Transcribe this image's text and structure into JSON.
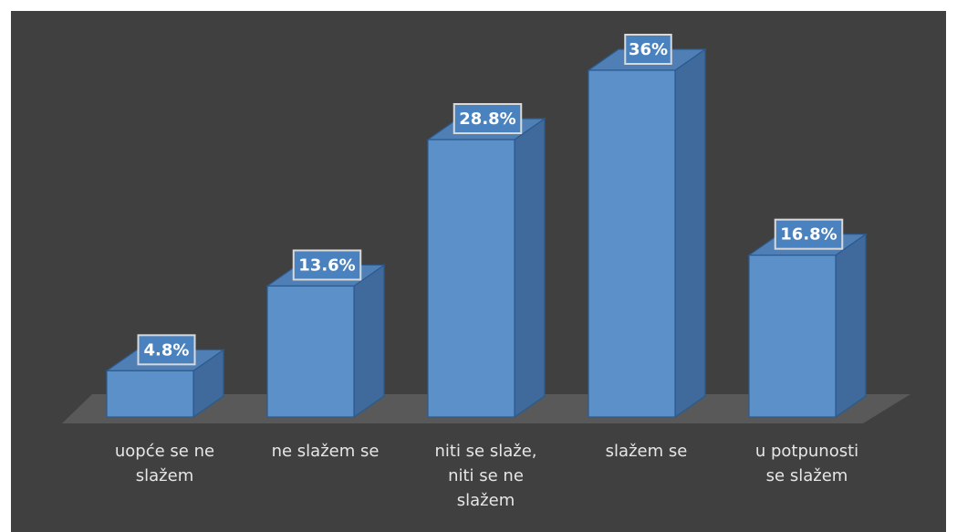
{
  "chart_data": {
    "type": "bar",
    "style": "3d-column",
    "categories": [
      [
        "uopće se ne",
        "slažem"
      ],
      [
        "ne slažem se"
      ],
      [
        "niti se slaže,",
        "niti se ne",
        "slažem"
      ],
      [
        "slažem se"
      ],
      [
        "u potpunosti",
        "se slažem"
      ]
    ],
    "values": [
      4.8,
      13.6,
      28.8,
      36,
      16.8
    ],
    "data_labels": [
      "4.8%",
      "13.6%",
      "28.8%",
      "36%",
      "16.8%"
    ],
    "unit": "%",
    "ylim": [
      0,
      36
    ],
    "grid": false,
    "legend": "none",
    "colors": {
      "background": "#404040",
      "floor": "#595959",
      "bar_front": "#5b90c8",
      "bar_top": "#4f7fb5",
      "bar_side": "#3f6a9b",
      "bar_stroke": "#2b5a8e",
      "label_box_fill": "#4a82c0",
      "label_box_stroke": "#d9d9d9",
      "label_text": "#ffffff",
      "category_text": "#e6e6e6"
    }
  }
}
